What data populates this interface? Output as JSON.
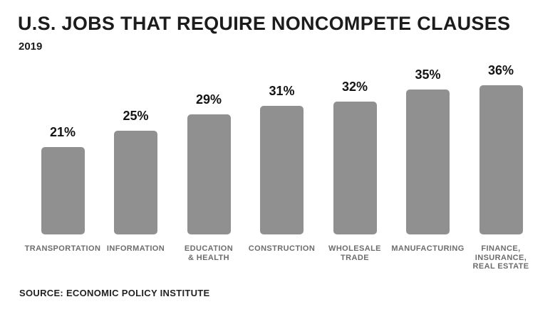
{
  "chart_data": {
    "type": "bar",
    "title": "U.S. JOBS THAT REQUIRE NONCOMPETE CLAUSES",
    "subtitle": "2019",
    "categories": [
      "TRANSPORTATION",
      "INFORMATION",
      "EDUCATION\n& HEALTH",
      "CONSTRUCTION",
      "WHOLESALE\nTRADE",
      "MANUFACTURING",
      "FINANCE,\nINSURANCE,\nREAL ESTATE"
    ],
    "values": [
      21,
      25,
      29,
      31,
      32,
      35,
      36
    ],
    "value_labels": [
      "21%",
      "25%",
      "29%",
      "31%",
      "32%",
      "35%",
      "36%"
    ],
    "xlabel": "",
    "ylabel": "",
    "ylim": [
      0,
      36
    ],
    "grid": false,
    "legend": null,
    "source": "SOURCE: ECONOMIC POLICY INSTITUTE"
  },
  "colors": {
    "background": "#ffffff",
    "bar": "#909090",
    "title": "#1c1c1c",
    "value_label": "#141414",
    "category_label": "#6d6d6d",
    "source": "#222222"
  }
}
